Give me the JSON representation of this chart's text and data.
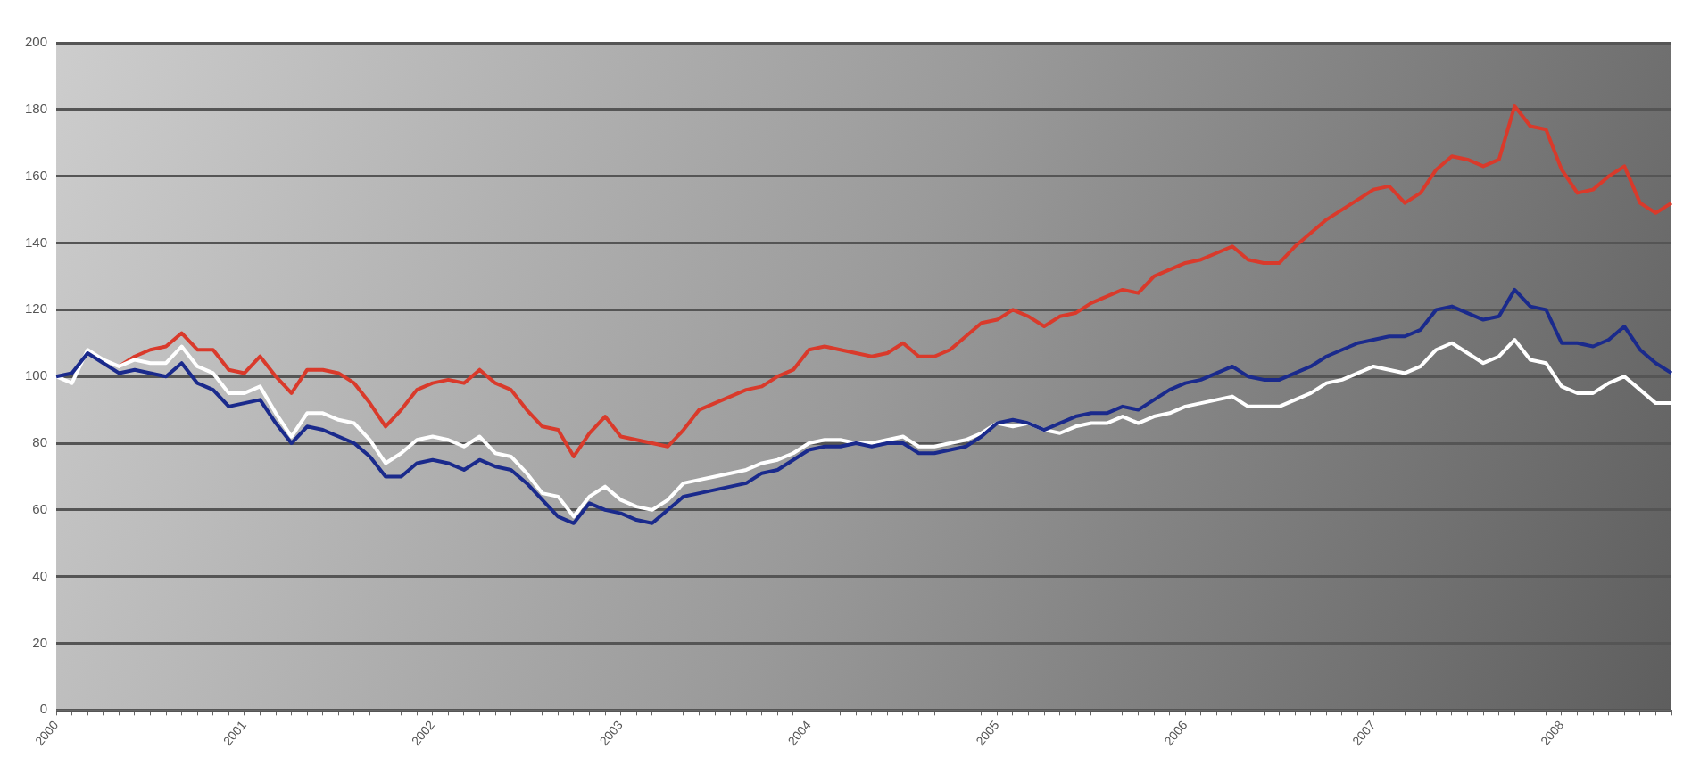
{
  "chart_data": {
    "type": "line",
    "categories": [
      "2000",
      null,
      null,
      null,
      null,
      null,
      null,
      null,
      null,
      null,
      null,
      null,
      "2001",
      null,
      null,
      null,
      null,
      null,
      null,
      null,
      null,
      null,
      null,
      null,
      "2002",
      null,
      null,
      null,
      null,
      null,
      null,
      null,
      null,
      null,
      null,
      null,
      "2003",
      null,
      null,
      null,
      null,
      null,
      null,
      null,
      null,
      null,
      null,
      null,
      "2004",
      null,
      null,
      null,
      null,
      null,
      null,
      null,
      null,
      null,
      null,
      null,
      "2005",
      null,
      null,
      null,
      null,
      null,
      null,
      null,
      null,
      null,
      null,
      null,
      "2006",
      null,
      null,
      null,
      null,
      null,
      null,
      null,
      null,
      null,
      null,
      null,
      "2007",
      null,
      null,
      null,
      null,
      null,
      null,
      null,
      null,
      null,
      null,
      null,
      "2008",
      null,
      null,
      null,
      null,
      null,
      null,
      null
    ],
    "series": [
      {
        "color": "#1a2a8c",
        "values": [
          100,
          101,
          107,
          104,
          101,
          102,
          101,
          100,
          104,
          98,
          96,
          91,
          92,
          93,
          86,
          80,
          85,
          84,
          82,
          80,
          76,
          70,
          70,
          74,
          75,
          74,
          72,
          75,
          73,
          72,
          68,
          63,
          58,
          56,
          62,
          60,
          59,
          57,
          56,
          60,
          64,
          65,
          66,
          67,
          68,
          71,
          72,
          75,
          78,
          79,
          79,
          80,
          79,
          80,
          80,
          77,
          77,
          78,
          79,
          82,
          86,
          87,
          86,
          84,
          86,
          88,
          89,
          89,
          91,
          90,
          93,
          96,
          98,
          99,
          101,
          103,
          100,
          99,
          99,
          101,
          103,
          106,
          108,
          110,
          111,
          112,
          112,
          114,
          120,
          121,
          119,
          117,
          118,
          126,
          121,
          120,
          110,
          110,
          109,
          111,
          115,
          108,
          104,
          101
        ]
      },
      {
        "color": "#ffffff",
        "values": [
          100,
          98,
          108,
          105,
          103,
          105,
          104,
          104,
          109,
          103,
          101,
          95,
          95,
          97,
          89,
          82,
          89,
          89,
          87,
          86,
          81,
          74,
          77,
          81,
          82,
          81,
          79,
          82,
          77,
          76,
          71,
          65,
          64,
          58,
          64,
          67,
          63,
          61,
          60,
          63,
          68,
          69,
          70,
          71,
          72,
          74,
          75,
          77,
          80,
          81,
          81,
          80,
          80,
          81,
          82,
          79,
          79,
          80,
          81,
          83,
          86,
          85,
          86,
          84,
          83,
          85,
          86,
          86,
          88,
          86,
          88,
          89,
          91,
          92,
          93,
          94,
          91,
          91,
          91,
          93,
          95,
          98,
          99,
          101,
          103,
          102,
          101,
          103,
          108,
          110,
          107,
          104,
          106,
          111,
          105,
          104,
          97,
          95,
          95,
          98,
          100,
          96,
          92,
          92
        ]
      },
      {
        "color": "#d93a2b",
        "values": [
          null,
          null,
          null,
          null,
          103,
          106,
          108,
          109,
          113,
          108,
          108,
          102,
          101,
          106,
          100,
          95,
          102,
          102,
          101,
          98,
          92,
          85,
          90,
          96,
          98,
          99,
          98,
          102,
          98,
          96,
          90,
          85,
          84,
          76,
          83,
          88,
          82,
          81,
          80,
          79,
          84,
          90,
          92,
          94,
          96,
          97,
          100,
          102,
          108,
          109,
          108,
          107,
          106,
          107,
          110,
          106,
          106,
          108,
          112,
          116,
          117,
          120,
          118,
          115,
          118,
          119,
          122,
          124,
          126,
          125,
          130,
          132,
          134,
          135,
          137,
          139,
          135,
          134,
          134,
          139,
          143,
          147,
          150,
          153,
          156,
          157,
          152,
          155,
          162,
          166,
          165,
          163,
          165,
          181,
          175,
          174,
          162,
          155,
          156,
          160,
          163,
          152,
          149,
          152
        ]
      }
    ],
    "ylim": [
      0,
      200
    ],
    "yticks": [
      0,
      20,
      40,
      60,
      80,
      100,
      120,
      140,
      160,
      180,
      200
    ],
    "grid": "y",
    "legend": false,
    "marker": "none",
    "line_style": "solid"
  }
}
